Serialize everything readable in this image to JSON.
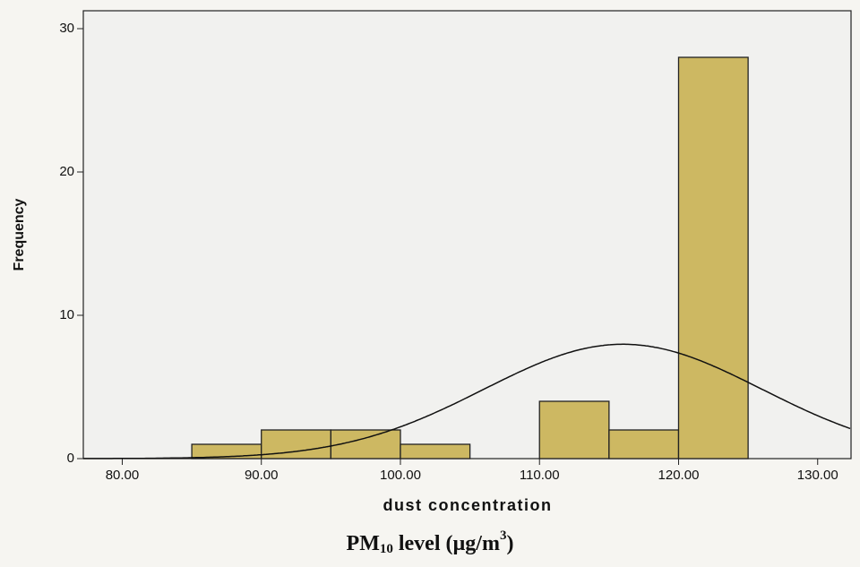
{
  "chart_data": {
    "type": "histogram",
    "bins": [
      85,
      90,
      95,
      100,
      105,
      110,
      115,
      120,
      125
    ],
    "counts": [
      1,
      2,
      2,
      1,
      0,
      4,
      2,
      28
    ],
    "color": "#cdb862",
    "normal_curve": {
      "mean": 116,
      "std": 10
    },
    "xlim": [
      77.2,
      132.4
    ],
    "ylim": [
      0,
      31.25
    ],
    "xticks": [
      {
        "value": 80,
        "label": "80.00"
      },
      {
        "value": 90,
        "label": "90.00"
      },
      {
        "value": 100,
        "label": "100.00"
      },
      {
        "value": 110,
        "label": "110.00"
      },
      {
        "value": 120,
        "label": "120.00"
      },
      {
        "value": 130,
        "label": "130.00"
      }
    ],
    "yticks": [
      0,
      10,
      20,
      30
    ],
    "x_label": "dust concentration",
    "y_label": "Frequency",
    "caption": [
      "PM",
      "10",
      " level (µg/m",
      "3",
      ")"
    ]
  }
}
